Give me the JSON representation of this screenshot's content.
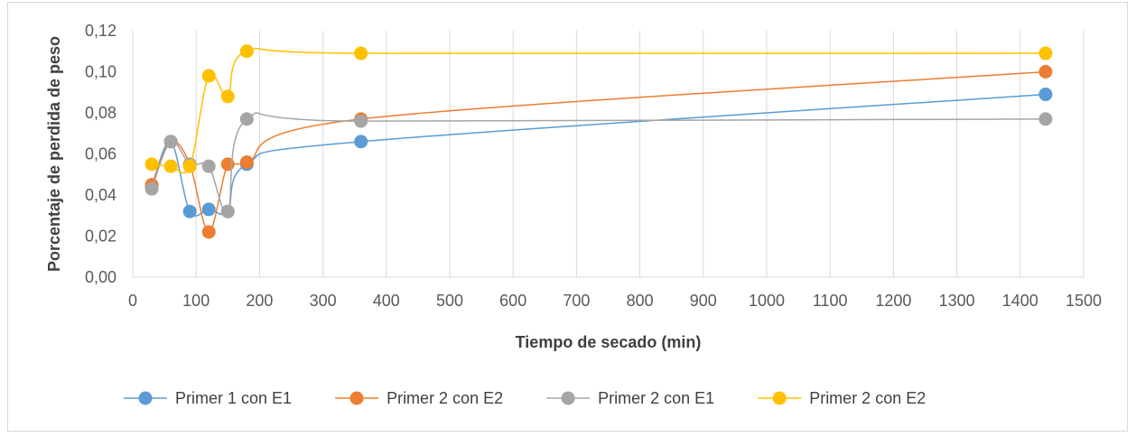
{
  "chart_data": {
    "type": "scatter",
    "title": "",
    "xlabel": "Tiempo de secado (min)",
    "ylabel": "Porcentaje de perdida de peso",
    "xlim": [
      0,
      1500
    ],
    "ylim": [
      0,
      0.12
    ],
    "xticks": [
      0,
      100,
      200,
      300,
      400,
      500,
      600,
      700,
      800,
      900,
      1000,
      1100,
      1200,
      1300,
      1400,
      1500
    ],
    "xtick_labels": [
      "0",
      "100",
      "200",
      "300",
      "400",
      "500",
      "600",
      "700",
      "800",
      "900",
      "1000",
      "1100",
      "1200",
      "1300",
      "1400",
      "1500"
    ],
    "yticks": [
      0,
      0.02,
      0.04,
      0.06,
      0.08,
      0.1,
      0.12
    ],
    "ytick_labels": [
      "0,00",
      "0,02",
      "0,04",
      "0,06",
      "0,08",
      "0,10",
      "0,12"
    ],
    "grid": "vertical",
    "smooth_lines": true,
    "legend_position": "bottom",
    "series": [
      {
        "name": "Primer 1 con E1",
        "color": "#5b9bd5",
        "x": [
          30,
          60,
          90,
          120,
          150,
          180,
          360,
          1440
        ],
        "y": [
          0.044,
          0.066,
          0.032,
          0.033,
          0.032,
          0.055,
          0.066,
          0.089
        ]
      },
      {
        "name": "Primer 2 con E2",
        "color": "#ed7d31",
        "x": [
          30,
          60,
          90,
          120,
          150,
          180,
          360,
          1440
        ],
        "y": [
          0.045,
          0.066,
          0.055,
          0.022,
          0.055,
          0.056,
          0.077,
          0.1
        ]
      },
      {
        "name": "Primer 2 con E1",
        "color": "#a5a5a5",
        "x": [
          30,
          60,
          90,
          120,
          150,
          180,
          360,
          1440
        ],
        "y": [
          0.043,
          0.066,
          0.055,
          0.054,
          0.032,
          0.077,
          0.076,
          0.077
        ]
      },
      {
        "name": "Primer 2 con E2",
        "color": "#ffc000",
        "x": [
          30,
          60,
          90,
          120,
          150,
          180,
          360,
          1440
        ],
        "y": [
          0.055,
          0.054,
          0.054,
          0.098,
          0.088,
          0.11,
          0.109,
          0.109
        ]
      }
    ]
  }
}
